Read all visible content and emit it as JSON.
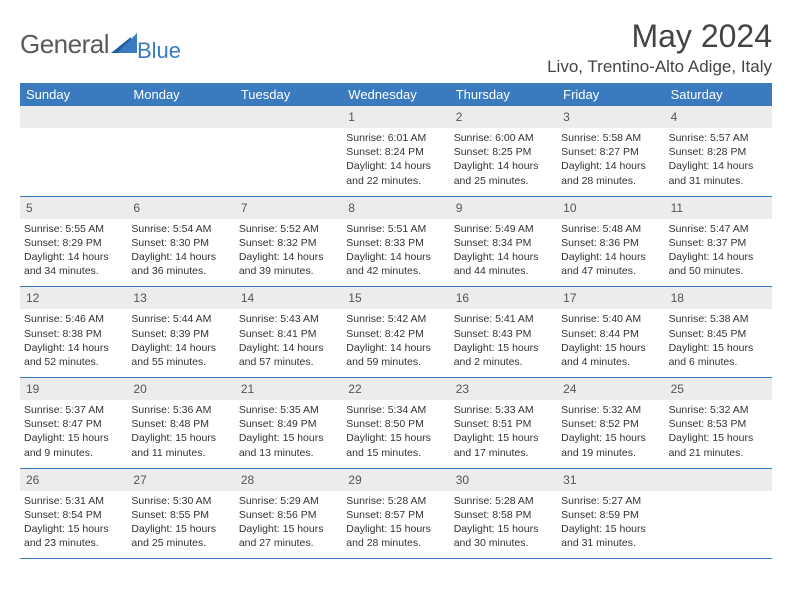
{
  "brand": {
    "general": "General",
    "blue": "Blue"
  },
  "title": "May 2024",
  "location": "Livo, Trentino-Alto Adige, Italy",
  "colors": {
    "header_bg": "#3a7bbf",
    "header_text": "#ffffff",
    "daynum_bg": "#ececec",
    "border": "#3a7bbf",
    "text": "#333333",
    "title": "#444444"
  },
  "weekdays": [
    "Sunday",
    "Monday",
    "Tuesday",
    "Wednesday",
    "Thursday",
    "Friday",
    "Saturday"
  ],
  "weeks": [
    [
      null,
      null,
      null,
      {
        "n": "1",
        "sr": "6:01 AM",
        "ss": "8:24 PM",
        "dl": "14 hours and 22 minutes."
      },
      {
        "n": "2",
        "sr": "6:00 AM",
        "ss": "8:25 PM",
        "dl": "14 hours and 25 minutes."
      },
      {
        "n": "3",
        "sr": "5:58 AM",
        "ss": "8:27 PM",
        "dl": "14 hours and 28 minutes."
      },
      {
        "n": "4",
        "sr": "5:57 AM",
        "ss": "8:28 PM",
        "dl": "14 hours and 31 minutes."
      }
    ],
    [
      {
        "n": "5",
        "sr": "5:55 AM",
        "ss": "8:29 PM",
        "dl": "14 hours and 34 minutes."
      },
      {
        "n": "6",
        "sr": "5:54 AM",
        "ss": "8:30 PM",
        "dl": "14 hours and 36 minutes."
      },
      {
        "n": "7",
        "sr": "5:52 AM",
        "ss": "8:32 PM",
        "dl": "14 hours and 39 minutes."
      },
      {
        "n": "8",
        "sr": "5:51 AM",
        "ss": "8:33 PM",
        "dl": "14 hours and 42 minutes."
      },
      {
        "n": "9",
        "sr": "5:49 AM",
        "ss": "8:34 PM",
        "dl": "14 hours and 44 minutes."
      },
      {
        "n": "10",
        "sr": "5:48 AM",
        "ss": "8:36 PM",
        "dl": "14 hours and 47 minutes."
      },
      {
        "n": "11",
        "sr": "5:47 AM",
        "ss": "8:37 PM",
        "dl": "14 hours and 50 minutes."
      }
    ],
    [
      {
        "n": "12",
        "sr": "5:46 AM",
        "ss": "8:38 PM",
        "dl": "14 hours and 52 minutes."
      },
      {
        "n": "13",
        "sr": "5:44 AM",
        "ss": "8:39 PM",
        "dl": "14 hours and 55 minutes."
      },
      {
        "n": "14",
        "sr": "5:43 AM",
        "ss": "8:41 PM",
        "dl": "14 hours and 57 minutes."
      },
      {
        "n": "15",
        "sr": "5:42 AM",
        "ss": "8:42 PM",
        "dl": "14 hours and 59 minutes."
      },
      {
        "n": "16",
        "sr": "5:41 AM",
        "ss": "8:43 PM",
        "dl": "15 hours and 2 minutes."
      },
      {
        "n": "17",
        "sr": "5:40 AM",
        "ss": "8:44 PM",
        "dl": "15 hours and 4 minutes."
      },
      {
        "n": "18",
        "sr": "5:38 AM",
        "ss": "8:45 PM",
        "dl": "15 hours and 6 minutes."
      }
    ],
    [
      {
        "n": "19",
        "sr": "5:37 AM",
        "ss": "8:47 PM",
        "dl": "15 hours and 9 minutes."
      },
      {
        "n": "20",
        "sr": "5:36 AM",
        "ss": "8:48 PM",
        "dl": "15 hours and 11 minutes."
      },
      {
        "n": "21",
        "sr": "5:35 AM",
        "ss": "8:49 PM",
        "dl": "15 hours and 13 minutes."
      },
      {
        "n": "22",
        "sr": "5:34 AM",
        "ss": "8:50 PM",
        "dl": "15 hours and 15 minutes."
      },
      {
        "n": "23",
        "sr": "5:33 AM",
        "ss": "8:51 PM",
        "dl": "15 hours and 17 minutes."
      },
      {
        "n": "24",
        "sr": "5:32 AM",
        "ss": "8:52 PM",
        "dl": "15 hours and 19 minutes."
      },
      {
        "n": "25",
        "sr": "5:32 AM",
        "ss": "8:53 PM",
        "dl": "15 hours and 21 minutes."
      }
    ],
    [
      {
        "n": "26",
        "sr": "5:31 AM",
        "ss": "8:54 PM",
        "dl": "15 hours and 23 minutes."
      },
      {
        "n": "27",
        "sr": "5:30 AM",
        "ss": "8:55 PM",
        "dl": "15 hours and 25 minutes."
      },
      {
        "n": "28",
        "sr": "5:29 AM",
        "ss": "8:56 PM",
        "dl": "15 hours and 27 minutes."
      },
      {
        "n": "29",
        "sr": "5:28 AM",
        "ss": "8:57 PM",
        "dl": "15 hours and 28 minutes."
      },
      {
        "n": "30",
        "sr": "5:28 AM",
        "ss": "8:58 PM",
        "dl": "15 hours and 30 minutes."
      },
      {
        "n": "31",
        "sr": "5:27 AM",
        "ss": "8:59 PM",
        "dl": "15 hours and 31 minutes."
      },
      null
    ]
  ],
  "labels": {
    "sunrise": "Sunrise:",
    "sunset": "Sunset:",
    "daylight": "Daylight:"
  }
}
